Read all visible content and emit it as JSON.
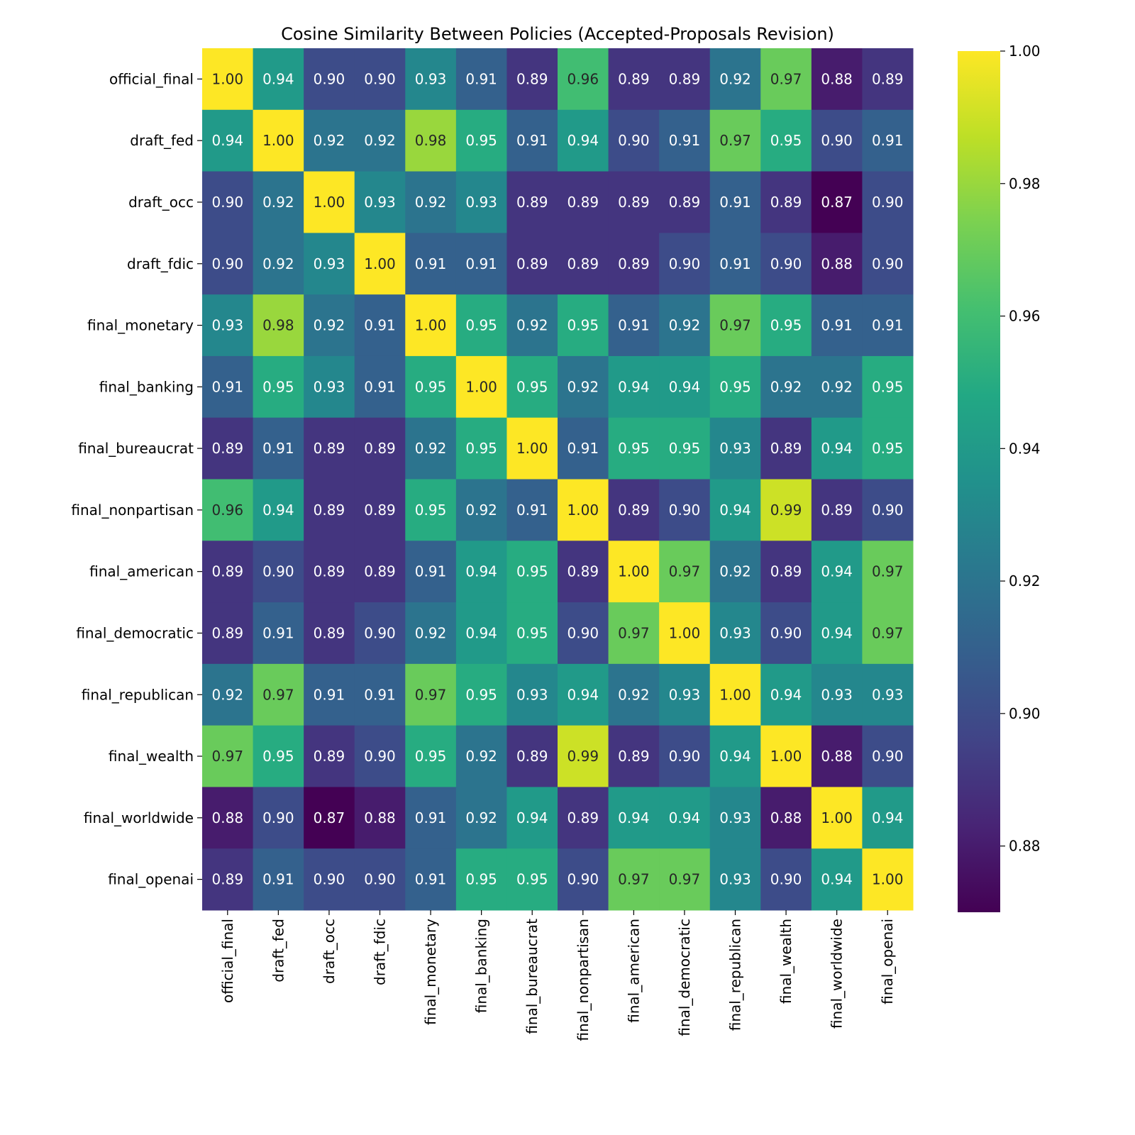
{
  "chart_data": {
    "type": "heatmap",
    "title": "Cosine Similarity Between Policies (Accepted-Proposals Revision)",
    "xlabel": "",
    "ylabel": "",
    "colormap": "viridis",
    "annotation_format": "0.00",
    "row_labels": [
      "official_final",
      "draft_fed",
      "draft_occ",
      "draft_fdic",
      "final_monetary",
      "final_banking",
      "final_bureaucrat",
      "final_nonpartisan",
      "final_american",
      "final_democratic",
      "final_republican",
      "final_wealth",
      "final_worldwide",
      "final_openai"
    ],
    "col_labels": [
      "official_final",
      "draft_fed",
      "draft_occ",
      "draft_fdic",
      "final_monetary",
      "final_banking",
      "final_bureaucrat",
      "final_nonpartisan",
      "final_american",
      "final_democratic",
      "final_republican",
      "final_wealth",
      "final_worldwide",
      "final_openai"
    ],
    "values": [
      [
        1.0,
        0.94,
        0.9,
        0.9,
        0.93,
        0.91,
        0.89,
        0.96,
        0.89,
        0.89,
        0.92,
        0.97,
        0.88,
        0.89
      ],
      [
        0.94,
        1.0,
        0.92,
        0.92,
        0.98,
        0.95,
        0.91,
        0.94,
        0.9,
        0.91,
        0.97,
        0.95,
        0.9,
        0.91
      ],
      [
        0.9,
        0.92,
        1.0,
        0.93,
        0.92,
        0.93,
        0.89,
        0.89,
        0.89,
        0.89,
        0.91,
        0.89,
        0.87,
        0.9
      ],
      [
        0.9,
        0.92,
        0.93,
        1.0,
        0.91,
        0.91,
        0.89,
        0.89,
        0.89,
        0.9,
        0.91,
        0.9,
        0.88,
        0.9
      ],
      [
        0.93,
        0.98,
        0.92,
        0.91,
        1.0,
        0.95,
        0.92,
        0.95,
        0.91,
        0.92,
        0.97,
        0.95,
        0.91,
        0.91
      ],
      [
        0.91,
        0.95,
        0.93,
        0.91,
        0.95,
        1.0,
        0.95,
        0.92,
        0.94,
        0.94,
        0.95,
        0.92,
        0.92,
        0.95
      ],
      [
        0.89,
        0.91,
        0.89,
        0.89,
        0.92,
        0.95,
        1.0,
        0.91,
        0.95,
        0.95,
        0.93,
        0.89,
        0.94,
        0.95
      ],
      [
        0.96,
        0.94,
        0.89,
        0.89,
        0.95,
        0.92,
        0.91,
        1.0,
        0.89,
        0.9,
        0.94,
        0.99,
        0.89,
        0.9
      ],
      [
        0.89,
        0.9,
        0.89,
        0.89,
        0.91,
        0.94,
        0.95,
        0.89,
        1.0,
        0.97,
        0.92,
        0.89,
        0.94,
        0.97
      ],
      [
        0.89,
        0.91,
        0.89,
        0.9,
        0.92,
        0.94,
        0.95,
        0.9,
        0.97,
        1.0,
        0.93,
        0.9,
        0.94,
        0.97
      ],
      [
        0.92,
        0.97,
        0.91,
        0.91,
        0.97,
        0.95,
        0.93,
        0.94,
        0.92,
        0.93,
        1.0,
        0.94,
        0.93,
        0.93
      ],
      [
        0.97,
        0.95,
        0.89,
        0.9,
        0.95,
        0.92,
        0.89,
        0.99,
        0.89,
        0.9,
        0.94,
        1.0,
        0.88,
        0.9
      ],
      [
        0.88,
        0.9,
        0.87,
        0.88,
        0.91,
        0.92,
        0.94,
        0.89,
        0.94,
        0.94,
        0.93,
        0.88,
        1.0,
        0.94
      ],
      [
        0.89,
        0.91,
        0.9,
        0.9,
        0.91,
        0.95,
        0.95,
        0.9,
        0.97,
        0.97,
        0.93,
        0.9,
        0.94,
        1.0
      ]
    ],
    "colorbar": {
      "range": [
        0.87,
        1.0
      ],
      "ticks": [
        0.88,
        0.9,
        0.92,
        0.94,
        0.96,
        0.98,
        1.0
      ],
      "tick_labels": [
        "0.88",
        "0.90",
        "0.92",
        "0.94",
        "0.96",
        "0.98",
        "1.00"
      ]
    }
  }
}
